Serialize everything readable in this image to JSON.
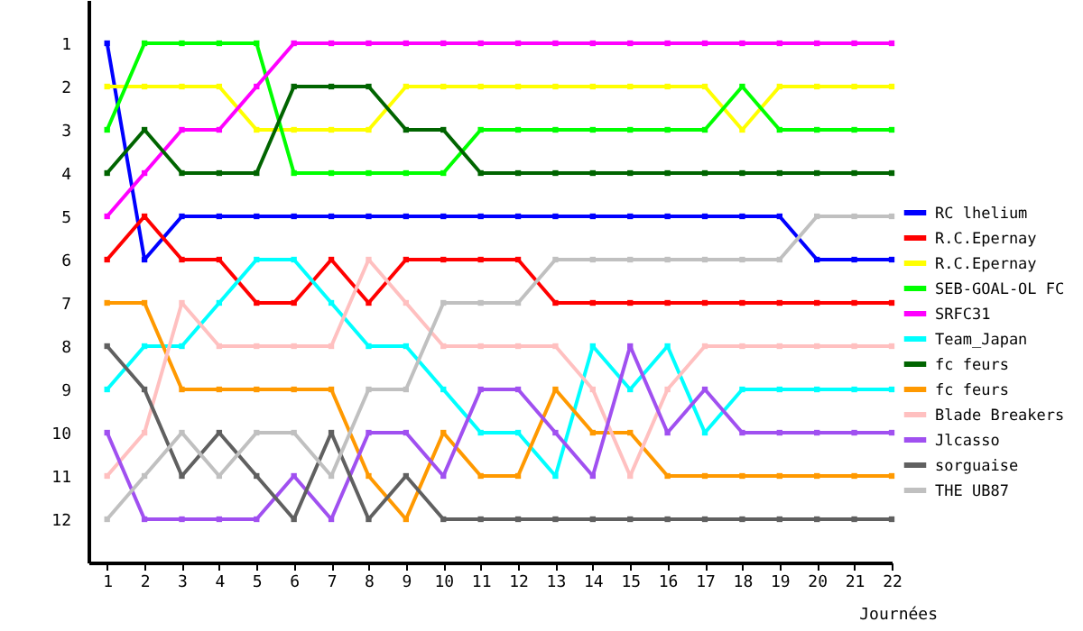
{
  "chart_data": {
    "type": "line",
    "xlabel": "Journées",
    "x": [
      1,
      2,
      3,
      4,
      5,
      6,
      7,
      8,
      9,
      10,
      11,
      12,
      13,
      14,
      15,
      16,
      17,
      18,
      19,
      20,
      21,
      22
    ],
    "xlim": [
      0.5,
      22
    ],
    "xticks": [
      1,
      2,
      3,
      4,
      5,
      6,
      7,
      8,
      9,
      10,
      11,
      12,
      13,
      14,
      15,
      16,
      17,
      18,
      19,
      20,
      21,
      22
    ],
    "ylim": [
      13,
      0
    ],
    "yticks": [
      1,
      2,
      3,
      4,
      5,
      6,
      7,
      8,
      9,
      10,
      11,
      12
    ],
    "grid": false,
    "legend": "right",
    "marker": "square",
    "series": [
      {
        "name": "RC lhelium",
        "color": "#0000ff",
        "values": [
          1,
          6,
          5,
          5,
          5,
          5,
          5,
          5,
          5,
          5,
          5,
          5,
          5,
          5,
          5,
          5,
          5,
          5,
          5,
          6,
          6,
          6
        ]
      },
      {
        "name": "R.C.Epernay",
        "color": "#ff0000",
        "values": [
          6,
          5,
          6,
          6,
          7,
          7,
          6,
          7,
          6,
          6,
          6,
          6,
          7,
          7,
          7,
          7,
          7,
          7,
          7,
          7,
          7,
          7
        ]
      },
      {
        "name": "R.C.Epernay",
        "color": "#ffff00",
        "values": [
          2,
          2,
          2,
          2,
          3,
          3,
          3,
          3,
          2,
          2,
          2,
          2,
          2,
          2,
          2,
          2,
          2,
          3,
          2,
          2,
          2,
          2
        ]
      },
      {
        "name": "SEB-GOAL-OL FC",
        "color": "#00ff00",
        "values": [
          3,
          1,
          1,
          1,
          1,
          4,
          4,
          4,
          4,
          4,
          3,
          3,
          3,
          3,
          3,
          3,
          3,
          2,
          3,
          3,
          3,
          3
        ]
      },
      {
        "name": "SRFC31",
        "color": "#ff00ff",
        "values": [
          5,
          4,
          3,
          3,
          2,
          1,
          1,
          1,
          1,
          1,
          1,
          1,
          1,
          1,
          1,
          1,
          1,
          1,
          1,
          1,
          1,
          1
        ]
      },
      {
        "name": "Team_Japan",
        "color": "#00ffff",
        "values": [
          9,
          8,
          8,
          7,
          6,
          6,
          7,
          8,
          8,
          9,
          10,
          10,
          11,
          8,
          9,
          8,
          10,
          9,
          9,
          9,
          9,
          9
        ]
      },
      {
        "name": "fc feurs",
        "color": "#006400",
        "values": [
          4,
          3,
          4,
          4,
          4,
          2,
          2,
          2,
          3,
          3,
          4,
          4,
          4,
          4,
          4,
          4,
          4,
          4,
          4,
          4,
          4,
          4
        ]
      },
      {
        "name": "fc feurs",
        "color": "#ff9900",
        "values": [
          7,
          7,
          9,
          9,
          9,
          9,
          9,
          11,
          12,
          10,
          11,
          11,
          9,
          10,
          10,
          11,
          11,
          11,
          11,
          11,
          11,
          11
        ]
      },
      {
        "name": "Blade Breakers",
        "color": "#ffc0c0",
        "values": [
          11,
          10,
          7,
          8,
          8,
          8,
          8,
          6,
          7,
          8,
          8,
          8,
          8,
          9,
          11,
          9,
          8,
          8,
          8,
          8,
          8,
          8
        ]
      },
      {
        "name": "Jlcasso",
        "color": "#a050f0",
        "values": [
          10,
          12,
          12,
          12,
          12,
          11,
          12,
          10,
          10,
          11,
          9,
          9,
          10,
          11,
          8,
          10,
          9,
          10,
          10,
          10,
          10,
          10
        ]
      },
      {
        "name": "sorguaise",
        "color": "#606060",
        "values": [
          8,
          9,
          11,
          10,
          11,
          12,
          10,
          12,
          11,
          12,
          12,
          12,
          12,
          12,
          12,
          12,
          12,
          12,
          12,
          12,
          12,
          12
        ]
      },
      {
        "name": "THE UB87",
        "color": "#c0c0c0",
        "values": [
          12,
          11,
          10,
          11,
          10,
          10,
          11,
          9,
          9,
          7,
          7,
          7,
          6,
          6,
          6,
          6,
          6,
          6,
          6,
          5,
          5,
          5
        ]
      }
    ]
  }
}
